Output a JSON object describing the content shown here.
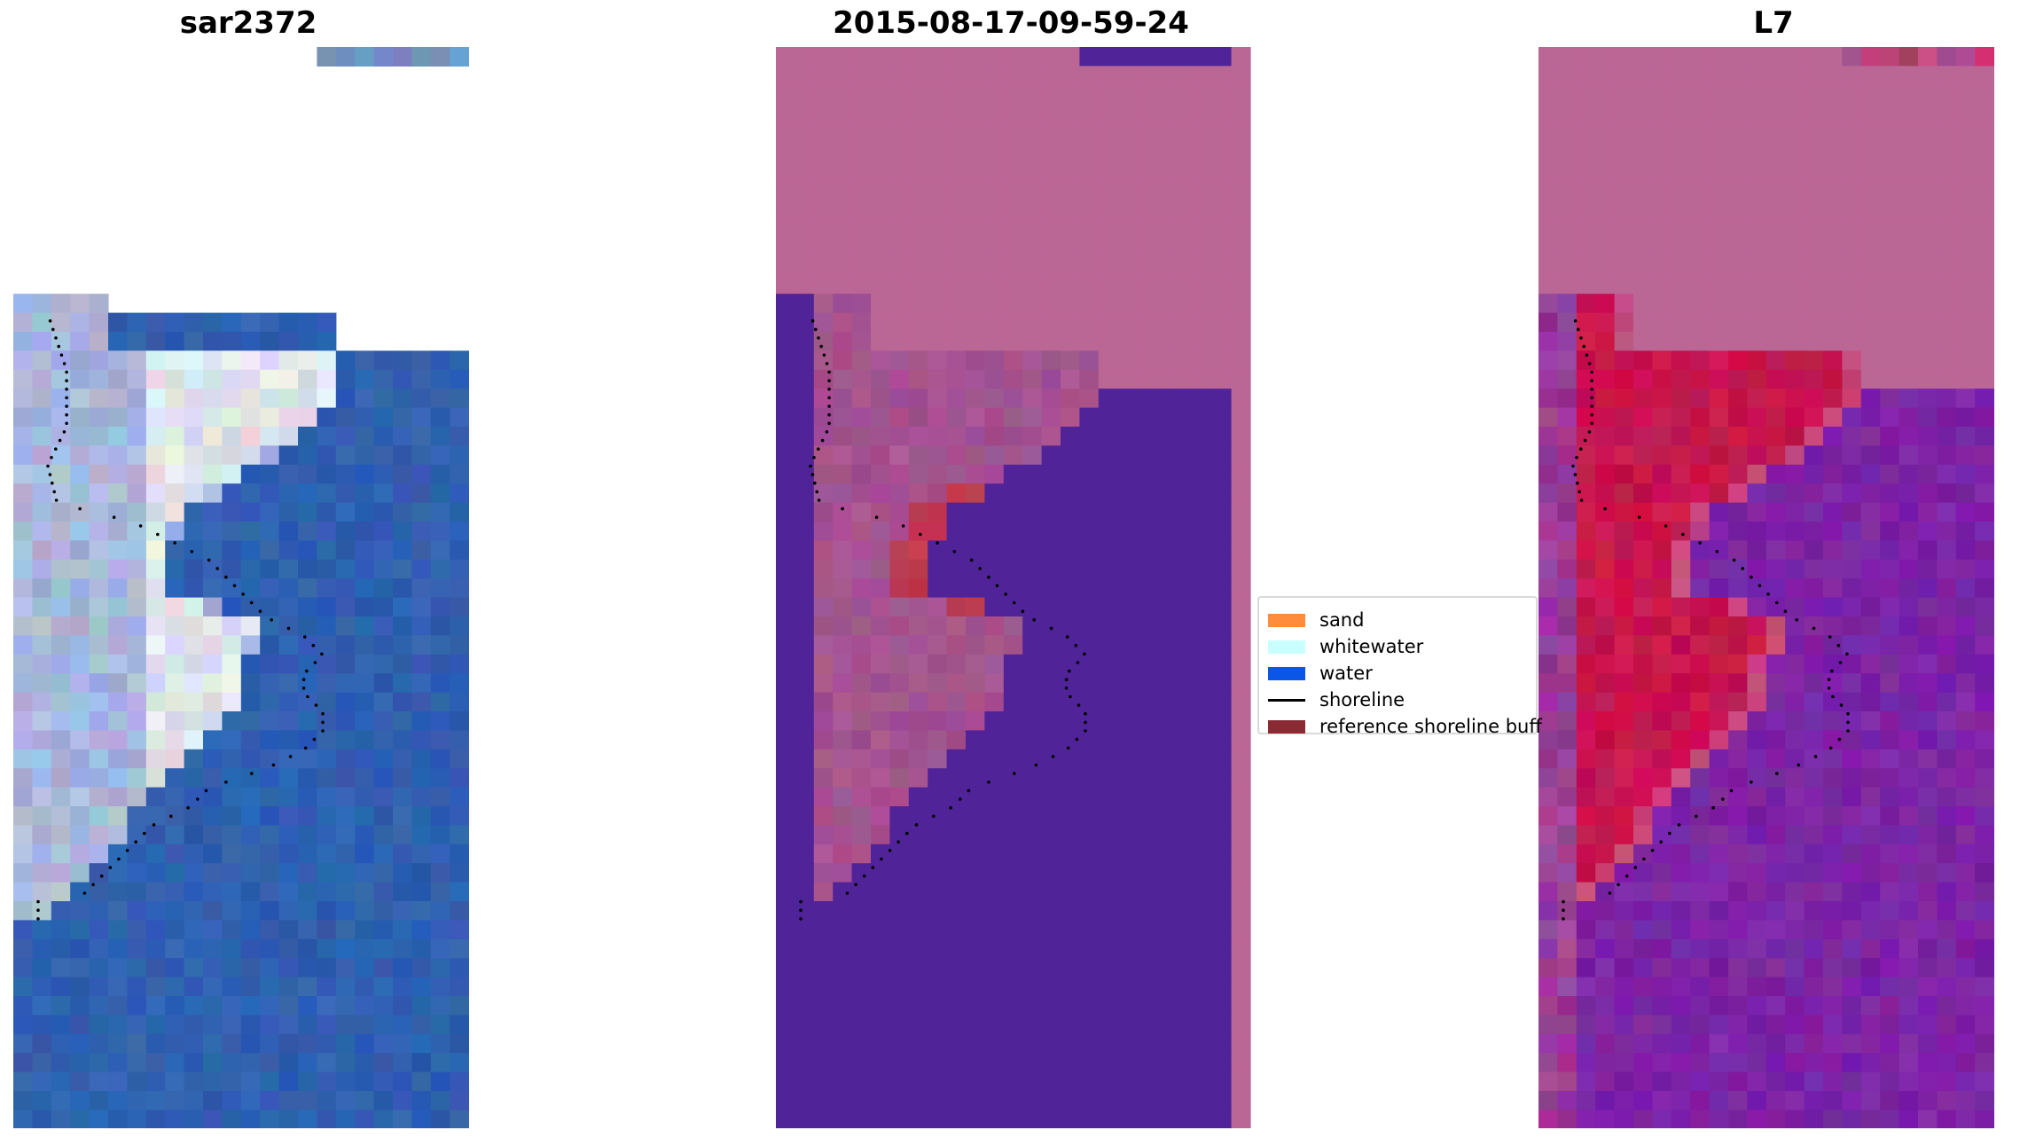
{
  "panels": [
    {
      "title": "sar2372"
    },
    {
      "title": "2015-08-17-09-59-24"
    },
    {
      "title": "L7"
    }
  ],
  "legend": {
    "entries": [
      {
        "label": "sand",
        "kind": "patch",
        "color": "#ff8c3a"
      },
      {
        "label": "whitewater",
        "kind": "patch",
        "color": "#c8ffff"
      },
      {
        "label": "water",
        "kind": "patch",
        "color": "#0a56e6"
      },
      {
        "label": "shoreline",
        "kind": "line",
        "color": "#000000"
      },
      {
        "label": "reference shoreline buff",
        "kind": "patch",
        "color": "#8a2a33"
      }
    ]
  },
  "colors": {
    "rgb_water": "#3060b0",
    "rgb_sand_whitewater": "#c8d0e8",
    "class_background": "#bb6796",
    "class_water": "#512398",
    "class_sand": "#a4538f",
    "class_buffer": "#c03a4e",
    "index_background": "#bb6796",
    "index_land": "#c7154d",
    "index_water": "#7c24a5",
    "shoreline_dots": "#000000"
  }
}
